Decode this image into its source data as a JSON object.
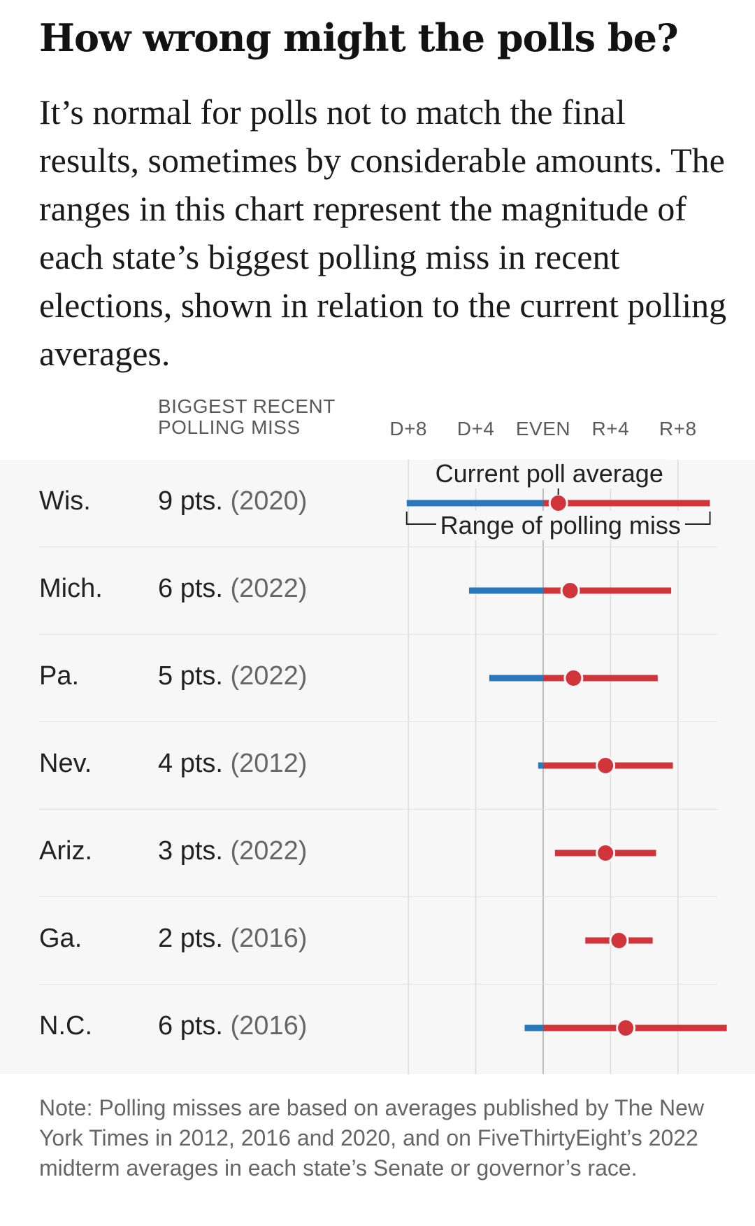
{
  "header": {
    "title": "How wrong might the polls be?",
    "subtitle": "It’s normal for polls not to match the final results, sometimes by considerable amounts. The ranges in this chart represent the magnitude of each state’s biggest polling miss in recent elections, shown in relation to the current polling averages."
  },
  "column_header": {
    "line1": "BIGGEST RECENT",
    "line2": "POLLING MISS"
  },
  "annotations": {
    "current": "Current poll average",
    "range": "Range of polling miss"
  },
  "note": "Note: Polling misses are based on averages published by The New York Times in 2012, 2016 and 2020, and on FiveThirtyEight’s 2022 midterm averages in each state’s Senate or governor’s race.",
  "colors": {
    "dem": "#2a78bc",
    "rep": "#d1343b",
    "grid": "#dcdcdc",
    "zero": "#bdbdbd"
  },
  "chart_data": {
    "type": "dot-range",
    "xlim": [
      -10,
      10.5
    ],
    "x_ticks": [
      {
        "value": -8,
        "label": "D+8"
      },
      {
        "value": -4,
        "label": "D+4"
      },
      {
        "value": 0,
        "label": "EVEN"
      },
      {
        "value": 4,
        "label": "R+4"
      },
      {
        "value": 8,
        "label": "R+8"
      }
    ],
    "rows": [
      {
        "state": "Wis.",
        "miss": "9 pts.",
        "year": "(2020)",
        "avg": 0.9,
        "low": -8.1,
        "high": 9.9
      },
      {
        "state": "Mich.",
        "miss": "6 pts.",
        "year": "(2022)",
        "avg": 1.6,
        "low": -4.4,
        "high": 7.6
      },
      {
        "state": "Pa.",
        "miss": "5 pts.",
        "year": "(2022)",
        "avg": 1.8,
        "low": -3.2,
        "high": 6.8
      },
      {
        "state": "Nev.",
        "miss": "4 pts.",
        "year": "(2012)",
        "avg": 3.7,
        "low": -0.3,
        "high": 7.7
      },
      {
        "state": "Ariz.",
        "miss": "3 pts.",
        "year": "(2022)",
        "avg": 3.7,
        "low": 0.7,
        "high": 6.7
      },
      {
        "state": "Ga.",
        "miss": "2 pts.",
        "year": "(2016)",
        "avg": 4.5,
        "low": 2.5,
        "high": 6.5
      },
      {
        "state": "N.C.",
        "miss": "6 pts.",
        "year": "(2016)",
        "avg": 4.9,
        "low": -1.1,
        "high": 10.9
      }
    ]
  }
}
